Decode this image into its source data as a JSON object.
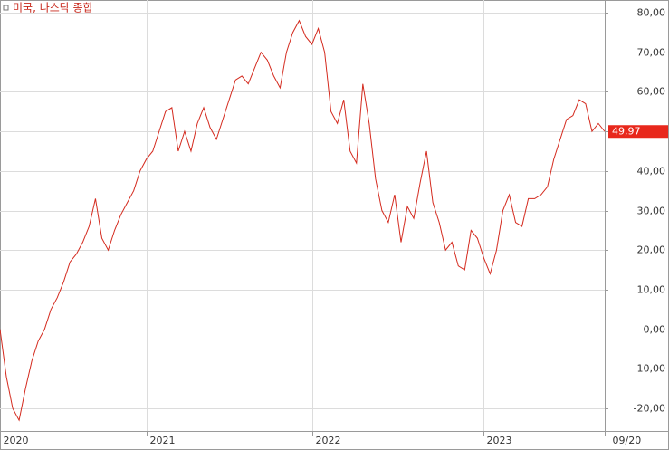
{
  "chart_data": {
    "type": "line",
    "categories": [
      "2020",
      null,
      null,
      null,
      null,
      null,
      null,
      null,
      null,
      null,
      null,
      null,
      null,
      null,
      null,
      null,
      null,
      null,
      null,
      null,
      null,
      null,
      null,
      "2021",
      null,
      null,
      null,
      null,
      null,
      null,
      null,
      null,
      null,
      null,
      null,
      null,
      null,
      null,
      null,
      null,
      null,
      null,
      null,
      null,
      null,
      null,
      null,
      null,
      null,
      "2022",
      null,
      null,
      null,
      null,
      null,
      null,
      null,
      null,
      null,
      null,
      null,
      null,
      null,
      null,
      null,
      null,
      null,
      null,
      null,
      null,
      null,
      null,
      null,
      null,
      null,
      null,
      "2023",
      null,
      null,
      null,
      null,
      null,
      null,
      null,
      null,
      null,
      null,
      null,
      null,
      null,
      null,
      null,
      null,
      null,
      null,
      "09/20"
    ],
    "series": [
      {
        "name": "미국, 나스닥 종합",
        "color": "#d42a1e",
        "values": [
          0,
          -12,
          -20,
          -23,
          -15,
          -8,
          -3,
          0,
          5,
          8,
          12,
          17,
          19,
          22,
          26,
          33,
          23,
          20,
          25,
          29,
          32,
          35,
          40,
          43,
          45,
          50,
          55,
          56,
          45,
          50,
          45,
          52,
          56,
          51,
          48,
          53,
          58,
          63,
          64,
          62,
          66,
          70,
          68,
          64,
          61,
          70,
          75,
          78,
          74,
          72,
          76,
          70,
          55,
          52,
          58,
          45,
          42,
          62,
          52,
          38,
          30,
          27,
          34,
          22,
          31,
          28,
          37,
          45,
          32,
          27,
          20,
          22,
          16,
          15,
          25,
          23,
          18,
          14,
          20,
          30,
          34,
          27,
          26,
          33,
          33,
          34,
          36,
          43,
          48,
          53,
          54,
          58,
          57,
          50,
          52,
          49.97
        ]
      }
    ],
    "current_value": 49.97,
    "current_value_label": "49,97",
    "ylim": [
      -25.7,
      83.2
    ],
    "yticks": [
      {
        "value": -20,
        "label": "-20,00"
      },
      {
        "value": -10,
        "label": "-10,00"
      },
      {
        "value": 0,
        "label": "0,00"
      },
      {
        "value": 10,
        "label": "10,00"
      },
      {
        "value": 20,
        "label": "20,00"
      },
      {
        "value": 30,
        "label": "30,00"
      },
      {
        "value": 40,
        "label": "40,00"
      },
      {
        "value": 50,
        "label": "50,00"
      },
      {
        "value": 60,
        "label": "60,00"
      },
      {
        "value": 70,
        "label": "70,00"
      },
      {
        "value": 80,
        "label": "80,00"
      }
    ],
    "grid": true
  }
}
